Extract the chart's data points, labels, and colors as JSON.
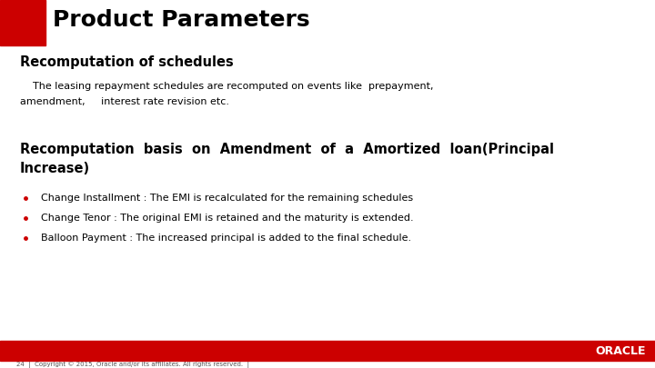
{
  "title": "Product Parameters",
  "bg_color": "#ffffff",
  "header_bar_color": "#cc0000",
  "header_text_color": "#000000",
  "section1_heading": "Recomputation of schedules",
  "section1_body_line1": "    The leasing repayment schedules are recomputed on events like  prepayment,",
  "section1_body_line2": "amendment,     interest rate revision etc.",
  "section2_heading_line1": "Recomputation  basis  on  Amendment  of  a  Amortized  loan(Principal",
  "section2_heading_line2": "Increase)",
  "bullet_points": [
    "Change Installment : The EMI is recalculated for the remaining schedules",
    "Change Tenor : The original EMI is retained and the maturity is extended.",
    "Balloon Payment : The increased principal is added to the final schedule."
  ],
  "footer_bar_color": "#cc0000",
  "footer_text_color": "#ffffff",
  "footer_label": "ORACLE",
  "copyright_text": "24  |  Copyright © 2015, Oracle and/or its affiliates. All rights reserved.  |",
  "red_square_color": "#cc0000",
  "bullet_color": "#cc0000"
}
